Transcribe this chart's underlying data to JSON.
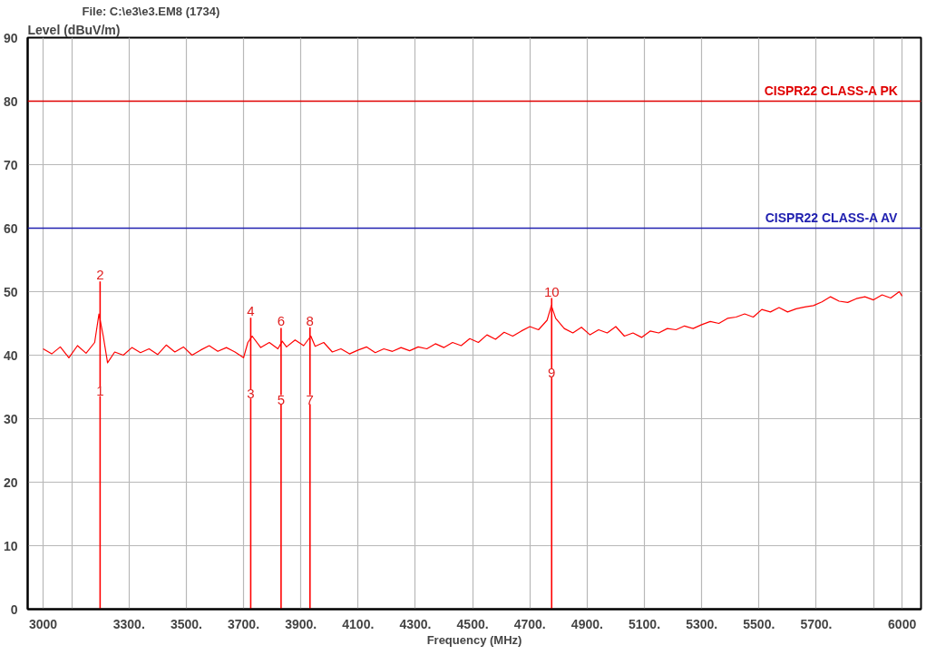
{
  "chart_data": {
    "type": "line",
    "title": "File: C:\\e3\\e3.EM8  (1734)",
    "xlabel": "Frequency (MHz)",
    "ylabel": "Level (dBuV/m)",
    "xlim": [
      2946,
      6066
    ],
    "ylim": [
      0,
      90
    ],
    "xticks": [
      {
        "value": 3000,
        "label": "3000"
      },
      {
        "value": 3100,
        "label": null
      },
      {
        "value": 3300,
        "label": "3300."
      },
      {
        "value": 3500,
        "label": "3500."
      },
      {
        "value": 3700,
        "label": "3700."
      },
      {
        "value": 3900,
        "label": "3900."
      },
      {
        "value": 4100,
        "label": "4100."
      },
      {
        "value": 4300,
        "label": "4300."
      },
      {
        "value": 4500,
        "label": "4500."
      },
      {
        "value": 4700,
        "label": "4700."
      },
      {
        "value": 4900,
        "label": "4900."
      },
      {
        "value": 5100,
        "label": "5100."
      },
      {
        "value": 5300,
        "label": "5300."
      },
      {
        "value": 5500,
        "label": "5500."
      },
      {
        "value": 5700,
        "label": "5700."
      },
      {
        "value": 5900,
        "label": null
      },
      {
        "value": 6000,
        "label": "6000"
      }
    ],
    "yticks": [
      0,
      10,
      20,
      30,
      40,
      50,
      60,
      70,
      80,
      90
    ],
    "grid": true,
    "series": [
      {
        "color": "#ff0000",
        "x": [
          3000,
          3030,
          3060,
          3090,
          3120,
          3150,
          3180,
          3195,
          3210,
          3225,
          3250,
          3280,
          3310,
          3340,
          3370,
          3400,
          3430,
          3460,
          3490,
          3520,
          3550,
          3580,
          3610,
          3640,
          3670,
          3700,
          3715,
          3730,
          3760,
          3790,
          3820,
          3835,
          3850,
          3880,
          3910,
          3935,
          3950,
          3980,
          4010,
          4040,
          4070,
          4100,
          4130,
          4160,
          4190,
          4220,
          4250,
          4280,
          4310,
          4340,
          4370,
          4400,
          4430,
          4460,
          4490,
          4520,
          4550,
          4580,
          4610,
          4640,
          4670,
          4700,
          4730,
          4760,
          4775,
          4790,
          4820,
          4850,
          4880,
          4910,
          4940,
          4970,
          5000,
          5030,
          5060,
          5090,
          5120,
          5150,
          5180,
          5210,
          5240,
          5270,
          5300,
          5330,
          5360,
          5390,
          5420,
          5450,
          5480,
          5510,
          5540,
          5570,
          5600,
          5630,
          5660,
          5690,
          5720,
          5750,
          5780,
          5810,
          5840,
          5870,
          5900,
          5930,
          5960,
          5990,
          6000
        ],
        "values": [
          41.0,
          40.2,
          41.3,
          39.6,
          41.5,
          40.3,
          42.0,
          46.5,
          43.0,
          38.8,
          40.5,
          40.0,
          41.2,
          40.4,
          41.0,
          40.1,
          41.6,
          40.5,
          41.3,
          40.0,
          40.8,
          41.5,
          40.6,
          41.2,
          40.5,
          39.6,
          42.0,
          43.0,
          41.2,
          42.0,
          41.0,
          42.2,
          41.3,
          42.4,
          41.5,
          43.0,
          41.4,
          42.0,
          40.5,
          41.0,
          40.2,
          40.8,
          41.3,
          40.4,
          41.0,
          40.6,
          41.2,
          40.7,
          41.3,
          41.0,
          41.8,
          41.2,
          42.0,
          41.5,
          42.6,
          42.0,
          43.2,
          42.5,
          43.6,
          43.0,
          43.8,
          44.5,
          44.0,
          45.5,
          47.8,
          45.8,
          44.2,
          43.5,
          44.4,
          43.2,
          44.0,
          43.5,
          44.5,
          43.0,
          43.5,
          42.8,
          43.8,
          43.5,
          44.2,
          44.0,
          44.6,
          44.2,
          44.8,
          45.3,
          45.0,
          45.8,
          46.0,
          46.5,
          46.0,
          47.2,
          46.8,
          47.5,
          46.8,
          47.3,
          47.6,
          47.8,
          48.4,
          49.2,
          48.5,
          48.3,
          48.9,
          49.2,
          48.7,
          49.5,
          49.0,
          50.0,
          49.3
        ]
      },
      {
        "type": "bar",
        "color": "#ff0000",
        "x": [
          3199,
          3725,
          3831,
          3932,
          4776
        ],
        "values": [
          51.6,
          45.9,
          44.3,
          44.4,
          49.0
        ]
      }
    ],
    "annotations": [
      {
        "text": "1",
        "x": 3199,
        "y": 34.3
      },
      {
        "text": "2",
        "x": 3199,
        "y": 51.6
      },
      {
        "text": "3",
        "x": 3725,
        "y": 33.9
      },
      {
        "text": "4",
        "x": 3725,
        "y": 45.9
      },
      {
        "text": "5",
        "x": 3831,
        "y": 33.0
      },
      {
        "text": "6",
        "x": 3831,
        "y": 44.3
      },
      {
        "text": "7",
        "x": 3932,
        "y": 33.0
      },
      {
        "text": "8",
        "x": 3932,
        "y": 44.4
      },
      {
        "text": "9",
        "x": 4776,
        "y": 37.2
      },
      {
        "text": "10",
        "x": 4776,
        "y": 49.0
      }
    ],
    "ref_lines": [
      {
        "axis": "y",
        "value": 80,
        "label": "CISPR22 CLASS-A PK",
        "color": "#e00000"
      },
      {
        "axis": "y",
        "value": 60,
        "label": "CISPR22 CLASS-A AV",
        "color": "#2020b0"
      }
    ]
  }
}
